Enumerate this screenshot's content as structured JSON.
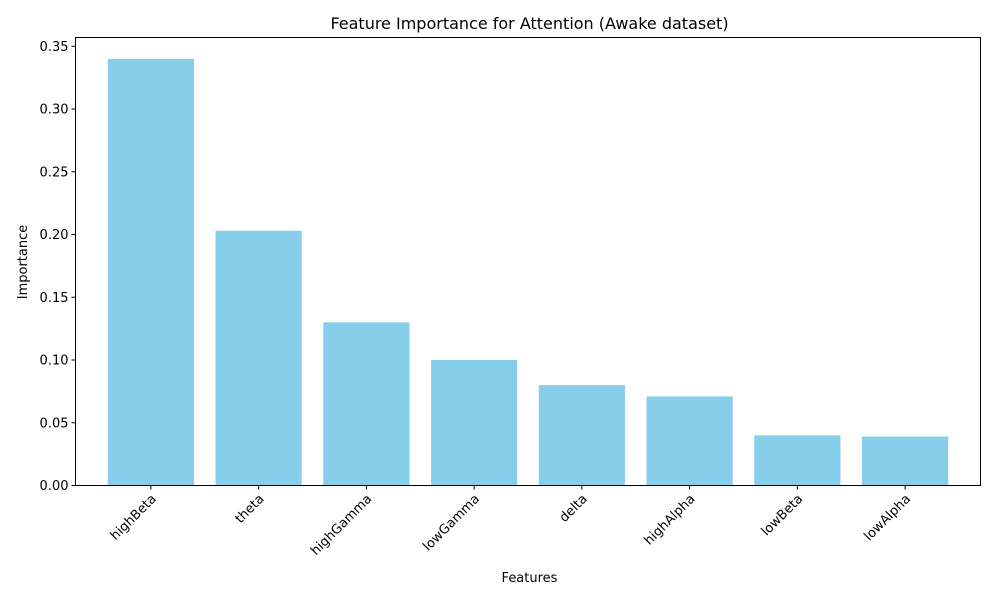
{
  "chart_data": {
    "type": "bar",
    "title": "Feature Importance for Attention (Awake dataset)",
    "xlabel": "Features",
    "ylabel": "Importance",
    "categories": [
      "highBeta",
      "theta",
      "highGamma",
      "lowGamma",
      "delta",
      "highAlpha",
      "lowBeta",
      "lowAlpha"
    ],
    "values": [
      0.34,
      0.203,
      0.13,
      0.1,
      0.08,
      0.071,
      0.04,
      0.039
    ],
    "ylim": [
      0,
      0.357
    ],
    "yticks": [
      "0.00",
      "0.05",
      "0.10",
      "0.15",
      "0.20",
      "0.25",
      "0.30",
      "0.35"
    ],
    "bar_color": "#87ceeb",
    "grid": false,
    "xtick_rotation_deg": 45
  }
}
